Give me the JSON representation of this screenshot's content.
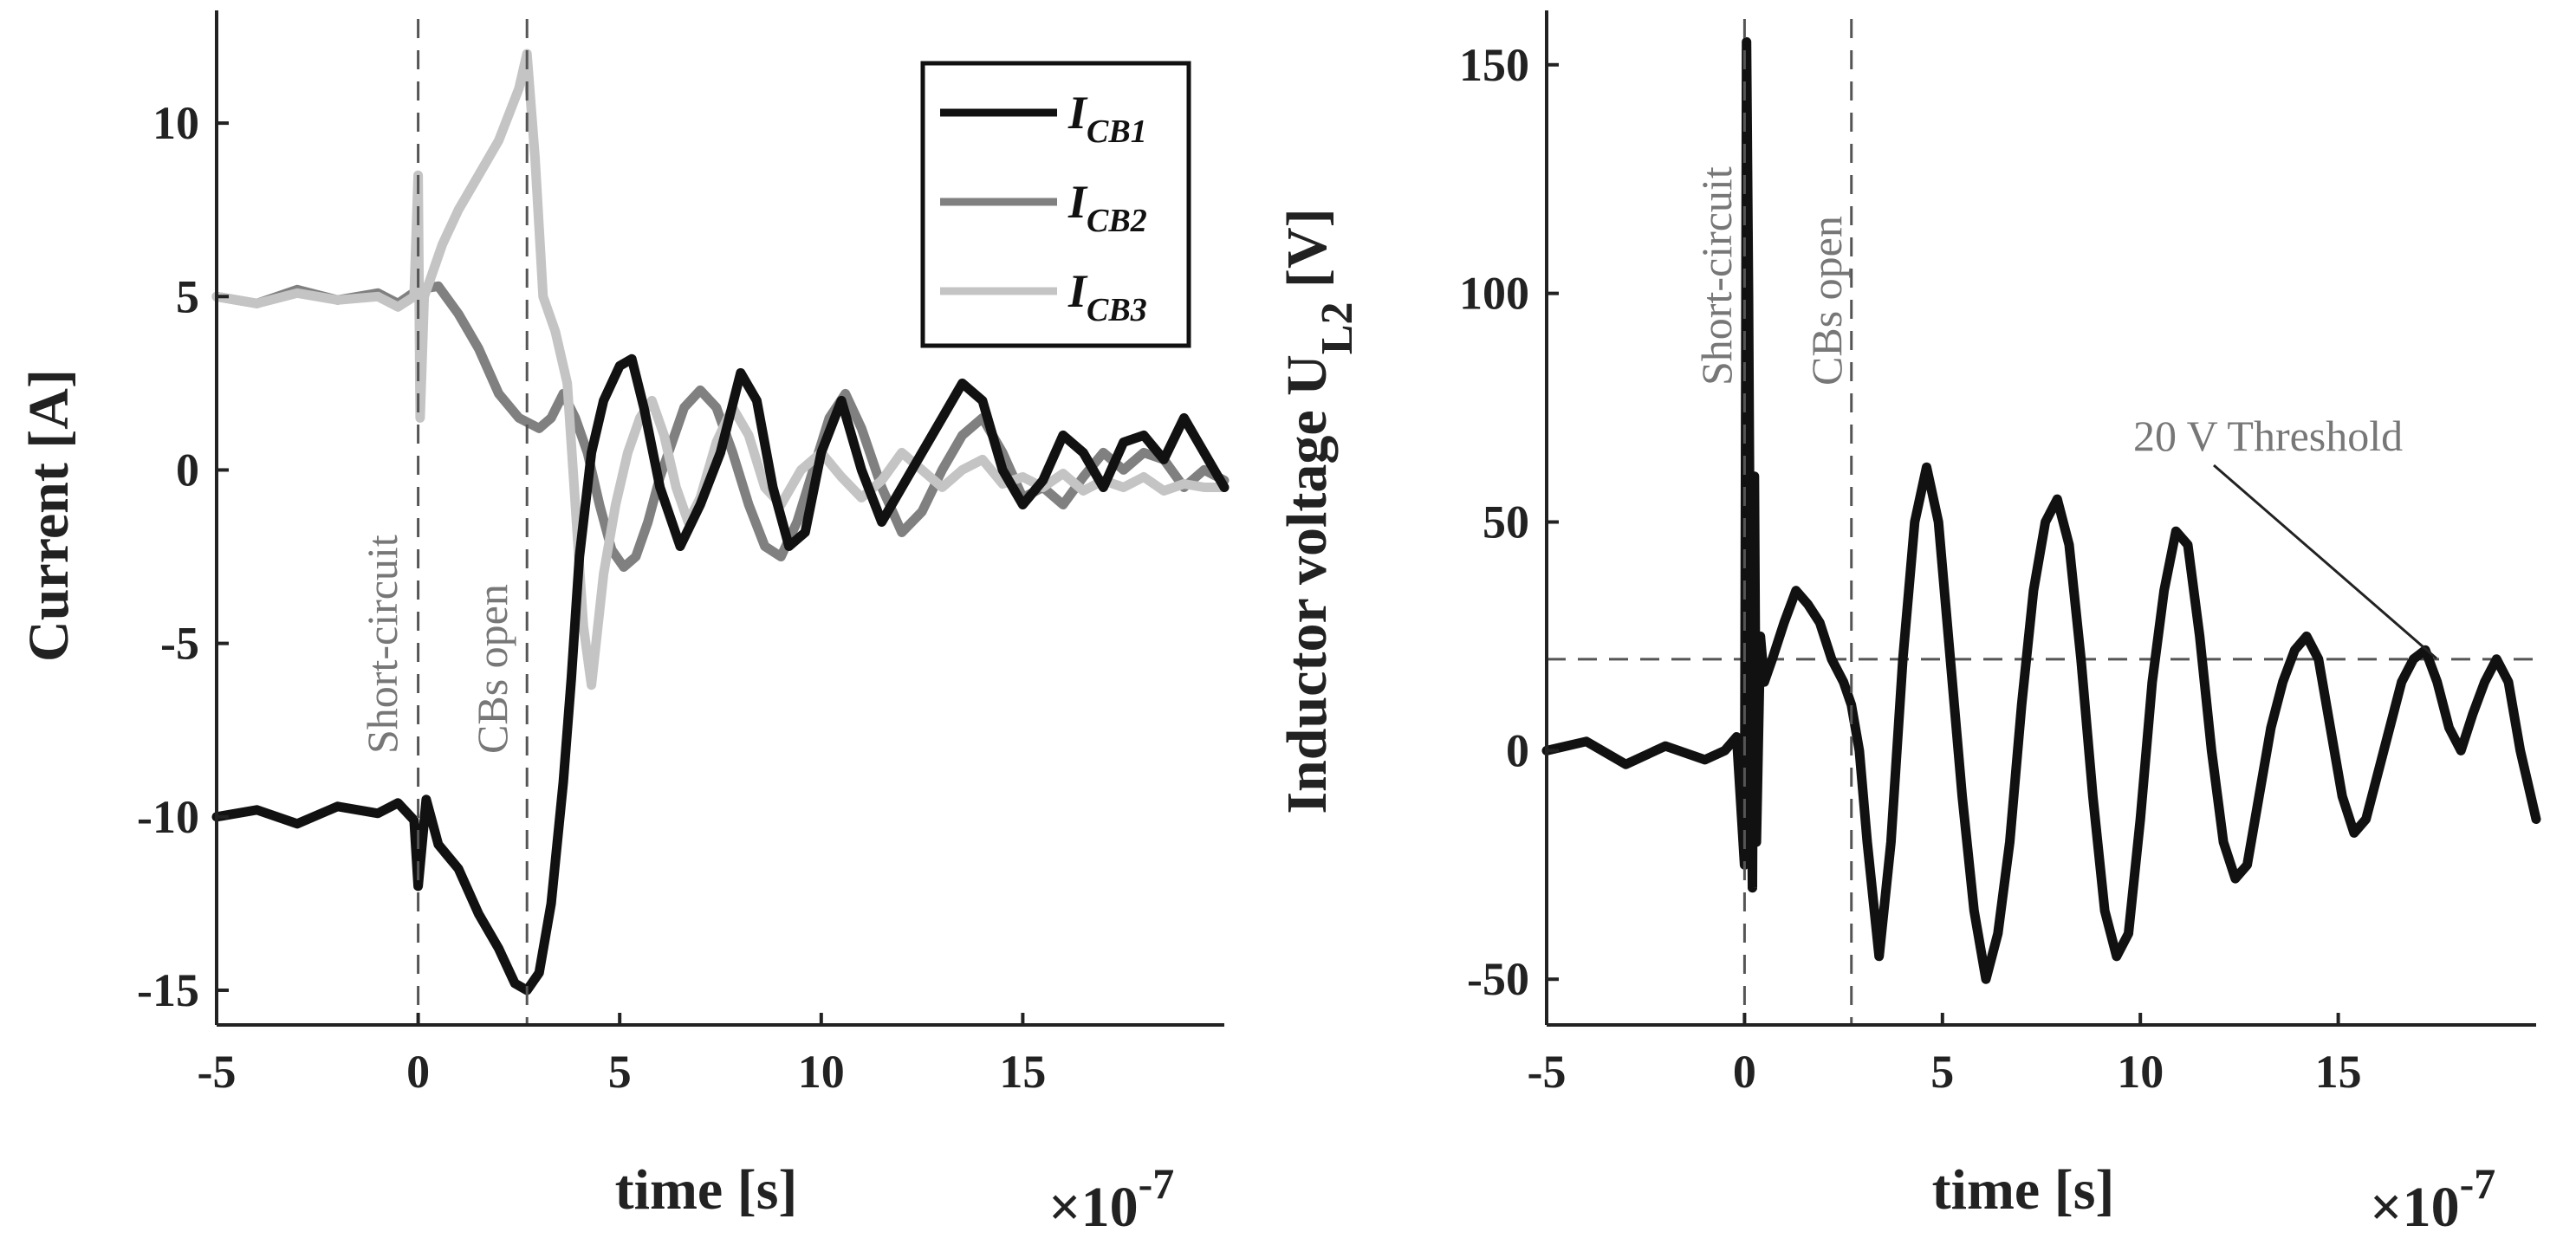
{
  "chart_data": [
    {
      "type": "line",
      "xlabel": "time [s]",
      "ylabel": "Current [A]",
      "x_exponent": "×10",
      "x_exponent_power": "-7",
      "xlim": [
        -5,
        20
      ],
      "ylim": [
        -16,
        13
      ],
      "xticks": [
        -5,
        0,
        5,
        10,
        15
      ],
      "yticks": [
        -15,
        -10,
        -5,
        0,
        5,
        10
      ],
      "legend_position": "top-right",
      "vlines": [
        {
          "x": 0,
          "label": "Short-circuit"
        },
        {
          "x": 2.7,
          "label": "CBs open"
        }
      ],
      "series": [
        {
          "name_main": "I",
          "name_sub": "CB1",
          "color": "#111111",
          "x": [
            -5,
            -4,
            -3,
            -2,
            -1,
            -0.5,
            -0.1,
            0,
            0.2,
            0.5,
            1,
            1.5,
            2,
            2.4,
            2.7,
            3,
            3.3,
            3.6,
            3.8,
            4,
            4.3,
            4.6,
            5,
            5.3,
            5.6,
            6,
            6.5,
            7,
            7.5,
            8,
            8.4,
            8.8,
            9.2,
            9.6,
            10,
            10.5,
            11,
            11.5,
            12,
            12.5,
            13,
            13.5,
            14,
            14.5,
            15,
            15.5,
            16,
            16.5,
            17,
            17.5,
            18,
            18.5,
            19,
            19.5,
            20
          ],
          "y": [
            -10,
            -9.8,
            -10.2,
            -9.7,
            -9.9,
            -9.6,
            -10.1,
            -12,
            -9.5,
            -10.8,
            -11.5,
            -12.8,
            -13.8,
            -14.8,
            -15,
            -14.5,
            -12.5,
            -9,
            -6,
            -2.5,
            0.5,
            2,
            3,
            3.2,
            1.8,
            -0.5,
            -2.2,
            -1,
            0.5,
            2.8,
            2,
            -0.5,
            -2.2,
            -1.8,
            0.5,
            2,
            0,
            -1.5,
            -0.5,
            0.5,
            1.5,
            2.5,
            2,
            0,
            -1,
            -0.3,
            1,
            0.5,
            -0.5,
            0.8,
            1,
            0.3,
            1.5,
            0.5,
            -0.5
          ]
        },
        {
          "name_main": "I",
          "name_sub": "CB2",
          "color": "#808080",
          "x": [
            -5,
            -4,
            -3,
            -2,
            -1,
            -0.5,
            0,
            0.5,
            1,
            1.5,
            2,
            2.5,
            3,
            3.3,
            3.6,
            3.9,
            4.2,
            4.5,
            4.8,
            5.1,
            5.4,
            5.7,
            6,
            6.3,
            6.6,
            7,
            7.4,
            7.8,
            8.2,
            8.6,
            9,
            9.4,
            9.8,
            10.2,
            10.6,
            11,
            11.5,
            12,
            12.5,
            13,
            13.5,
            14,
            14.5,
            15,
            15.5,
            16,
            16.5,
            17,
            17.5,
            18,
            18.5,
            19,
            19.5,
            20
          ],
          "y": [
            5,
            4.8,
            5.2,
            4.9,
            5.1,
            4.8,
            5.2,
            5.3,
            4.5,
            3.5,
            2.2,
            1.5,
            1.2,
            1.5,
            2.2,
            1.5,
            0.5,
            -1,
            -2.3,
            -2.8,
            -2.5,
            -1.5,
            -0.2,
            0.8,
            1.8,
            2.3,
            1.8,
            0.5,
            -1,
            -2.2,
            -2.5,
            -1.5,
            0,
            1.5,
            2.2,
            1.2,
            -0.5,
            -1.8,
            -1.2,
            0,
            1,
            1.5,
            0.5,
            -0.8,
            -0.5,
            -1,
            -0.2,
            0.5,
            0,
            0.5,
            0.3,
            -0.5,
            0,
            -0.3
          ]
        },
        {
          "name_main": "I",
          "name_sub": "CB3",
          "color": "#c4c4c4",
          "x": [
            -5,
            -4,
            -3,
            -2,
            -1,
            -0.5,
            -0.1,
            0,
            0.05,
            0.15,
            0.3,
            0.6,
            1,
            1.5,
            2,
            2.5,
            2.7,
            2.9,
            3.1,
            3.4,
            3.7,
            3.9,
            4.1,
            4.3,
            4.6,
            4.9,
            5.2,
            5.5,
            5.8,
            6.1,
            6.4,
            6.7,
            7,
            7.4,
            7.8,
            8.2,
            8.6,
            9,
            9.5,
            10,
            10.5,
            11,
            11.5,
            12,
            12.5,
            13,
            13.5,
            14,
            14.5,
            15,
            15.5,
            16,
            16.5,
            17,
            17.5,
            18,
            18.5,
            19,
            19.5,
            20
          ],
          "y": [
            5,
            4.8,
            5.1,
            4.9,
            5,
            4.7,
            5,
            8.5,
            1.5,
            5,
            5.5,
            6.5,
            7.5,
            8.5,
            9.5,
            11,
            12,
            9,
            5,
            4,
            2.5,
            -1,
            -4.5,
            -6.2,
            -3,
            -1,
            0.5,
            1.5,
            2,
            1,
            -0.5,
            -1.5,
            -0.8,
            0.8,
            1.8,
            1,
            -0.5,
            -1,
            0,
            0.5,
            -0.2,
            -0.8,
            -0.3,
            0.5,
            0,
            -0.5,
            0,
            0.3,
            -0.4,
            -0.2,
            -0.5,
            -0.1,
            -0.6,
            -0.3,
            -0.5,
            -0.2,
            -0.6,
            -0.4,
            -0.5,
            -0.5
          ]
        }
      ]
    },
    {
      "type": "line",
      "xlabel": "time [s]",
      "ylabel_main": "Inductor voltage U",
      "ylabel_sub": "L2",
      "ylabel_unit": " [V]",
      "x_exponent": "×10",
      "x_exponent_power": "-7",
      "xlim": [
        -5,
        20
      ],
      "ylim": [
        -60,
        160
      ],
      "xticks": [
        -5,
        0,
        5,
        10,
        15
      ],
      "yticks": [
        -50,
        0,
        50,
        100,
        150
      ],
      "vlines": [
        {
          "x": 0,
          "label": "Short-circuit"
        },
        {
          "x": 2.7,
          "label": "CBs open"
        }
      ],
      "hline": {
        "y": 20,
        "label": "20 V Threshold"
      },
      "series": [
        {
          "color": "#111111",
          "x": [
            -5,
            -4,
            -3,
            -2,
            -1,
            -0.5,
            -0.2,
            0,
            0.05,
            0.1,
            0.15,
            0.2,
            0.25,
            0.3,
            0.4,
            0.5,
            0.7,
            1,
            1.3,
            1.6,
            1.9,
            2.2,
            2.5,
            2.7,
            2.9,
            3.1,
            3.4,
            3.7,
            4,
            4.3,
            4.6,
            4.9,
            5.2,
            5.5,
            5.8,
            6.1,
            6.4,
            6.7,
            7,
            7.3,
            7.6,
            7.9,
            8.2,
            8.5,
            8.8,
            9.1,
            9.4,
            9.7,
            10,
            10.3,
            10.6,
            10.9,
            11.2,
            11.5,
            11.8,
            12.1,
            12.4,
            12.7,
            13,
            13.3,
            13.6,
            13.9,
            14.2,
            14.5,
            14.8,
            15.1,
            15.4,
            15.7,
            16,
            16.3,
            16.6,
            16.9,
            17.2,
            17.5,
            17.8,
            18.1,
            18.4,
            18.7,
            19,
            19.3,
            19.6,
            20
          ],
          "y": [
            0,
            2,
            -3,
            1,
            -2,
            0,
            3,
            -25,
            155,
            100,
            20,
            -30,
            60,
            -20,
            25,
            15,
            20,
            28,
            35,
            32,
            28,
            20,
            15,
            10,
            0,
            -20,
            -45,
            -20,
            20,
            50,
            62,
            50,
            20,
            -10,
            -35,
            -50,
            -40,
            -20,
            10,
            35,
            50,
            55,
            45,
            20,
            -10,
            -35,
            -45,
            -40,
            -15,
            15,
            35,
            48,
            45,
            25,
            0,
            -20,
            -28,
            -25,
            -10,
            5,
            15,
            22,
            25,
            20,
            5,
            -10,
            -18,
            -15,
            -5,
            5,
            15,
            20,
            22,
            15,
            5,
            0,
            8,
            15,
            20,
            15,
            0,
            -15
          ]
        }
      ]
    }
  ]
}
